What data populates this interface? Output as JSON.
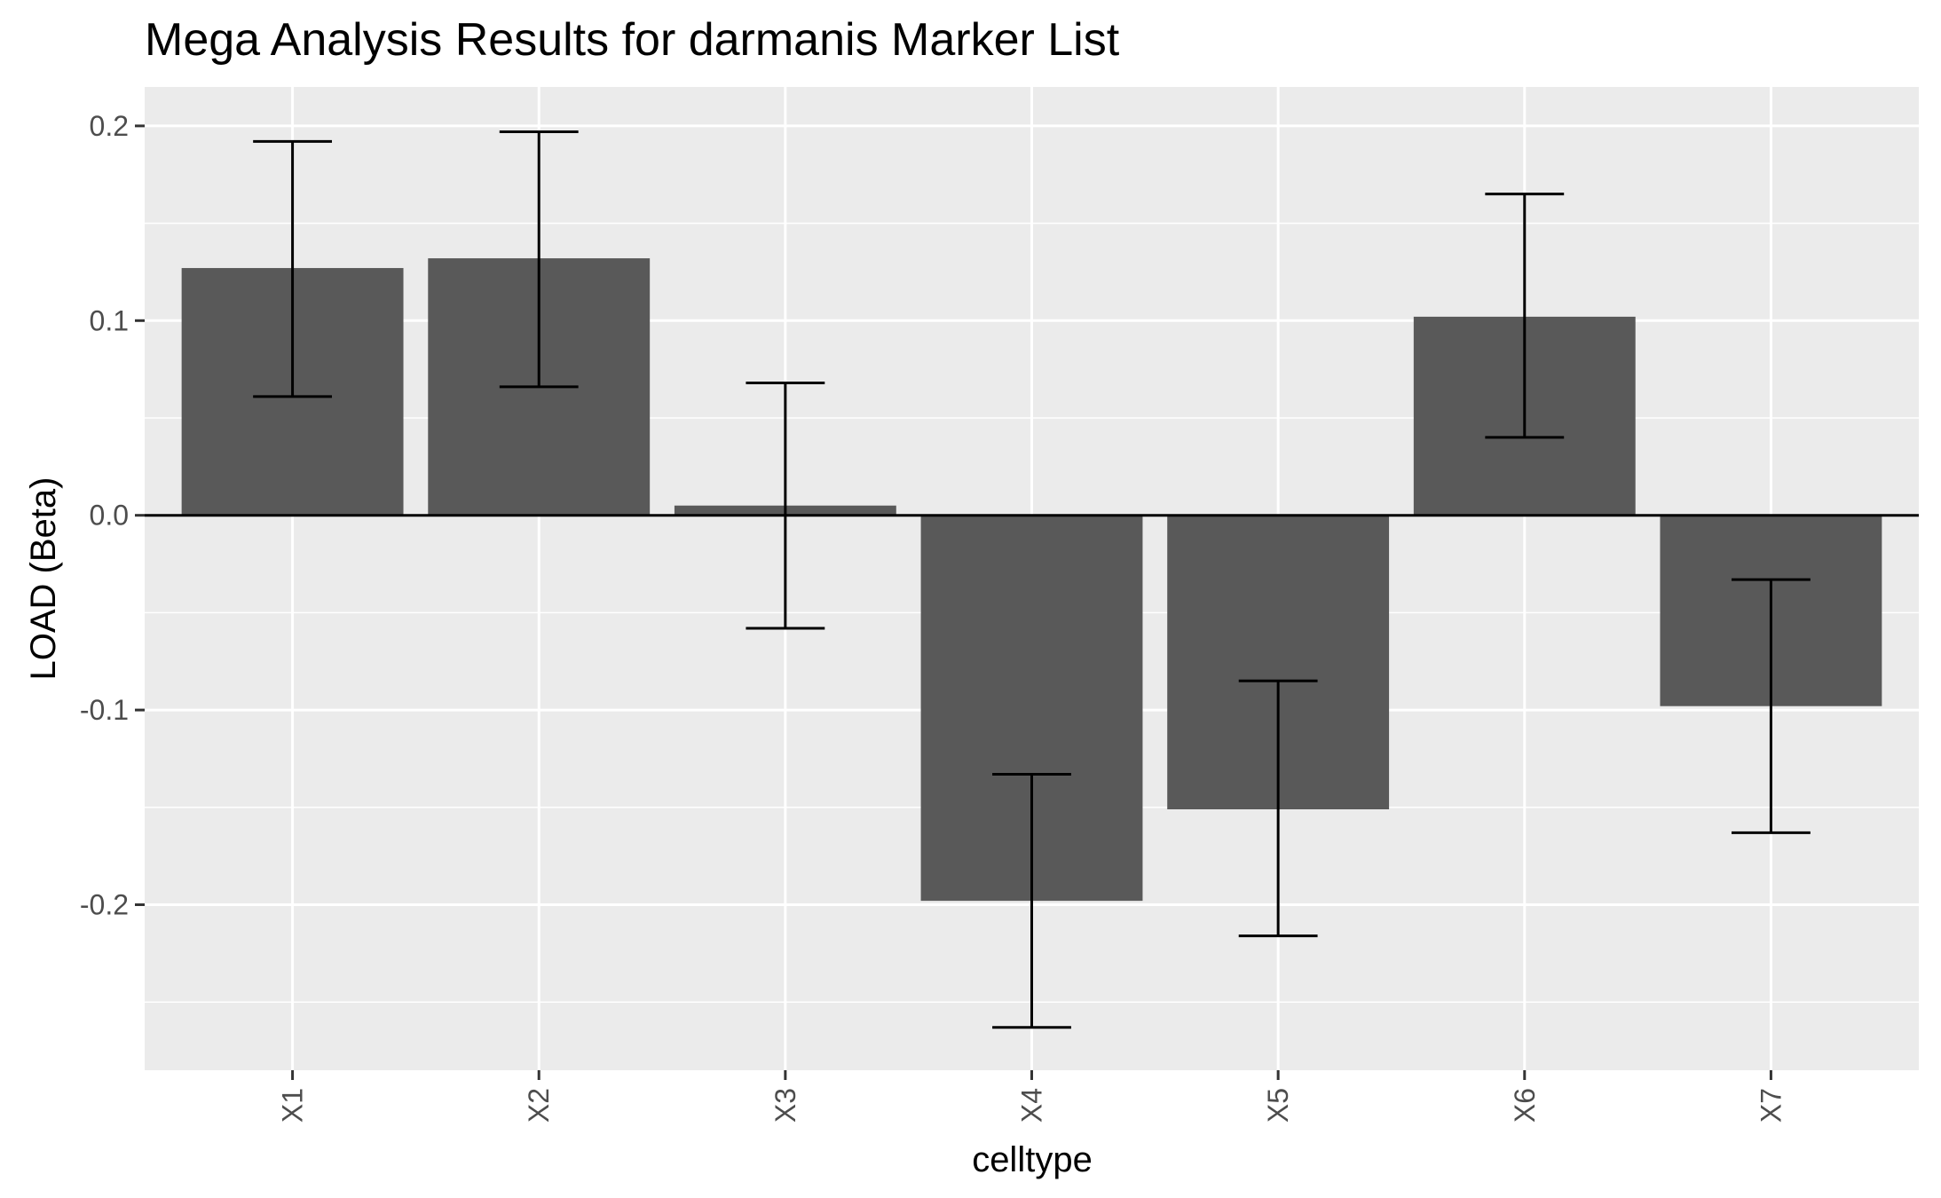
{
  "chart_data": {
    "type": "bar",
    "title": "Mega Analysis Results for darmanis Marker List",
    "xlabel": "celltype",
    "ylabel": "LOAD (Beta)",
    "categories": [
      "X1",
      "X2",
      "X3",
      "X4",
      "X5",
      "X6",
      "X7"
    ],
    "values": [
      0.127,
      0.132,
      0.005,
      -0.198,
      -0.151,
      0.102,
      -0.098
    ],
    "error_lower": [
      0.061,
      0.066,
      -0.058,
      -0.263,
      -0.216,
      0.04,
      -0.163
    ],
    "error_upper": [
      0.192,
      0.197,
      0.068,
      -0.133,
      -0.085,
      0.165,
      -0.033
    ],
    "ylim": [
      -0.285,
      0.22
    ],
    "yticks": [
      -0.2,
      -0.1,
      0.0,
      0.1,
      0.2
    ],
    "ytick_labels": [
      "-0.2",
      "-0.1",
      "0.0",
      "0.1",
      "0.2"
    ],
    "grid": true,
    "legend": "none",
    "colors": {
      "bar": "#595959",
      "panel": "#ebebeb",
      "grid": "#ffffff",
      "error_bar": "#000000",
      "zero_line": "#000000"
    }
  }
}
